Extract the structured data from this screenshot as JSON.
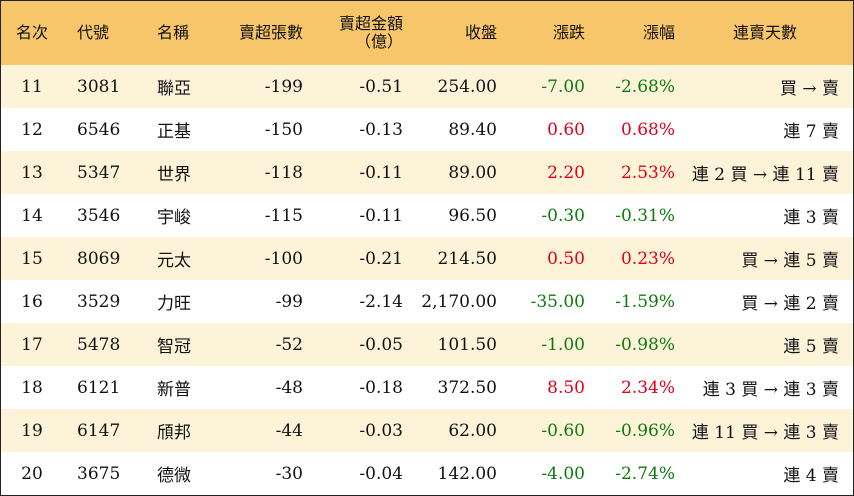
{
  "headers": {
    "rank": "名次",
    "code": "代號",
    "name": "名稱",
    "net_sell_lots": "賣超張數",
    "net_sell_amount_1": "賣超金額",
    "net_sell_amount_2": "（億）",
    "close": "收盤",
    "change": "漲跌",
    "change_pct": "漲幅",
    "streak": "連賣天數"
  },
  "colors": {
    "header_bg": "#f7c66b",
    "odd_row_bg": "#fdf3d9",
    "up": "#e0001b",
    "down": "#0d7a0d"
  },
  "rows": [
    {
      "rank": "11",
      "code": "3081",
      "name": "聯亞",
      "lots": "-199",
      "amount": "-0.51",
      "close": "254.00",
      "change": "-7.00",
      "pct": "-2.68%",
      "streak": "買 → 賣",
      "dir": "down"
    },
    {
      "rank": "12",
      "code": "6546",
      "name": "正基",
      "lots": "-150",
      "amount": "-0.13",
      "close": "89.40",
      "change": "0.60",
      "pct": "0.68%",
      "streak": "連 7 賣",
      "dir": "up"
    },
    {
      "rank": "13",
      "code": "5347",
      "name": "世界",
      "lots": "-118",
      "amount": "-0.11",
      "close": "89.00",
      "change": "2.20",
      "pct": "2.53%",
      "streak": "連 2 買 → 連 11 賣",
      "dir": "up"
    },
    {
      "rank": "14",
      "code": "3546",
      "name": "宇峻",
      "lots": "-115",
      "amount": "-0.11",
      "close": "96.50",
      "change": "-0.30",
      "pct": "-0.31%",
      "streak": "連 3 賣",
      "dir": "down"
    },
    {
      "rank": "15",
      "code": "8069",
      "name": "元太",
      "lots": "-100",
      "amount": "-0.21",
      "close": "214.50",
      "change": "0.50",
      "pct": "0.23%",
      "streak": "買 → 連 5 賣",
      "dir": "up"
    },
    {
      "rank": "16",
      "code": "3529",
      "name": "力旺",
      "lots": "-99",
      "amount": "-2.14",
      "close": "2,170.00",
      "change": "-35.00",
      "pct": "-1.59%",
      "streak": "買 → 連 2 賣",
      "dir": "down"
    },
    {
      "rank": "17",
      "code": "5478",
      "name": "智冠",
      "lots": "-52",
      "amount": "-0.05",
      "close": "101.50",
      "change": "-1.00",
      "pct": "-0.98%",
      "streak": "連 5 賣",
      "dir": "down"
    },
    {
      "rank": "18",
      "code": "6121",
      "name": "新普",
      "lots": "-48",
      "amount": "-0.18",
      "close": "372.50",
      "change": "8.50",
      "pct": "2.34%",
      "streak": "連 3 買 → 連 3 賣",
      "dir": "up"
    },
    {
      "rank": "19",
      "code": "6147",
      "name": "頎邦",
      "lots": "-44",
      "amount": "-0.03",
      "close": "62.00",
      "change": "-0.60",
      "pct": "-0.96%",
      "streak": "連 11 買 → 連 3 賣",
      "dir": "down"
    },
    {
      "rank": "20",
      "code": "3675",
      "name": "德微",
      "lots": "-30",
      "amount": "-0.04",
      "close": "142.00",
      "change": "-4.00",
      "pct": "-2.74%",
      "streak": "連 4 賣",
      "dir": "down"
    }
  ]
}
